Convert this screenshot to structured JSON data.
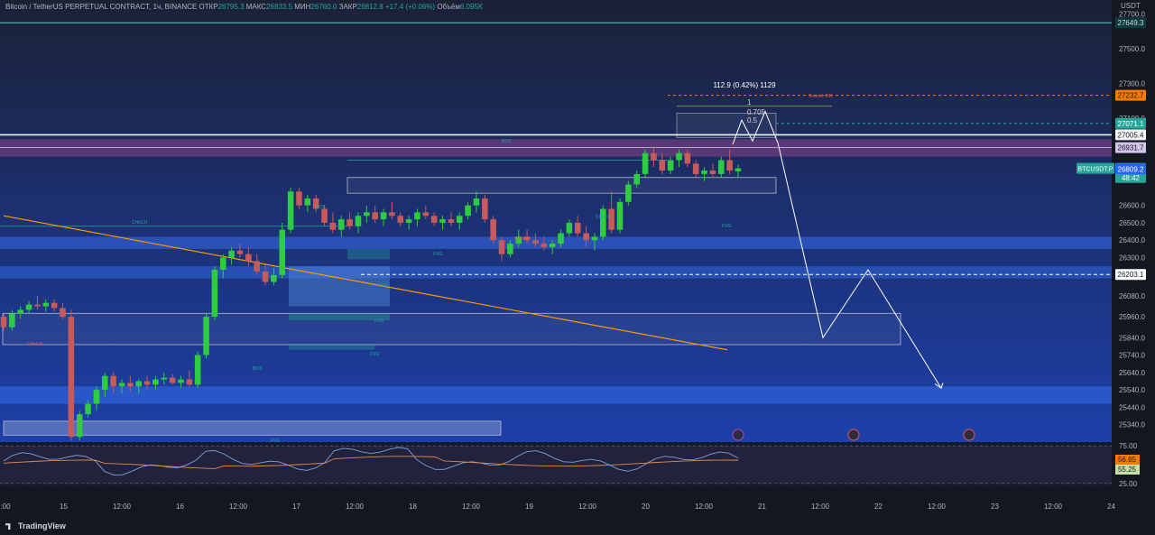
{
  "header": {
    "symbol": "Bitcoin / TetherUS PERPETUAL CONTRACT, 1ч, BINANCE",
    "open_label": "ОТКР",
    "open": "26795.3",
    "high_label": "МАКС",
    "high": "26833.5",
    "low_label": "МИН",
    "low": "26760.0",
    "close_label": "ЗАКР",
    "close": "26812.8",
    "change": "+17.4 (+0.06%)",
    "volume_label": "Объём",
    "volume": "6.095K"
  },
  "branding": "TradingView",
  "axis": {
    "currency": "USDT",
    "price_ticks": [
      "27700.0",
      "27500.0",
      "27300.0",
      "27100.0",
      "26600.0",
      "26500.0",
      "26400.0",
      "26300.0",
      "26080.0",
      "25960.0",
      "25840.0",
      "25740.0",
      "25640.0",
      "25540.0",
      "25440.0",
      "25340.0"
    ],
    "time_ticks": [
      ":00",
      "15",
      "12:00",
      "16",
      "12:00",
      "17",
      "12:00",
      "18",
      "12:00",
      "19",
      "12:00",
      "20",
      "12:00",
      "21",
      "12:00",
      "22",
      "12:00",
      "23",
      "12:00",
      "24"
    ],
    "rsi_ticks": [
      "75.00",
      "25.00"
    ]
  },
  "price_labels": [
    {
      "text": "27649.3",
      "price": 27649.3,
      "color": "#0c3c3c",
      "fg": "#d1d4dc"
    },
    {
      "text": "27232.7",
      "price": 27232.7,
      "color": "#f57c00",
      "fg": "#131722"
    },
    {
      "text": "27071.1",
      "price": 27071.1,
      "color": "#26a69a",
      "fg": "#ffffff"
    },
    {
      "text": "27005.4",
      "price": 27005.4,
      "color": "#f5f5f5",
      "fg": "#131722"
    },
    {
      "text": "26931.7",
      "price": 26931.7,
      "color": "#d1c4e9",
      "fg": "#131722"
    },
    {
      "text": "26812.8",
      "price": 26812.8,
      "color": "#26a69a",
      "fg": "#ffffff"
    },
    {
      "text": "48:42",
      "price": 26760,
      "color": "#26a69a",
      "fg": "#ffffff"
    },
    {
      "text": "26809.2",
      "price": 26809.2,
      "color": "#2962ff",
      "fg": "#ffffff"
    },
    {
      "text": "26203.1",
      "price": 26203.1,
      "color": "#ffffff",
      "fg": "#131722"
    }
  ],
  "ticker_tag": "BTCUSDT.P",
  "measure_label": "112.9 (0.42%) 1129",
  "fib_labels": [
    "1",
    "0.705",
    "0.5"
  ],
  "smc_labels": {
    "fvg": "FVG",
    "choch": "CHoCH",
    "bos": "BOS",
    "ob": "Bearish OB"
  },
  "rsi_values": [
    "56.85",
    "55.25"
  ],
  "colors": {
    "up": "#26a69a",
    "down": "#ef5350",
    "bg": "#131722",
    "bull_candle": "#2ecc40",
    "bear_candle": "#c75a5a",
    "trend": "#ff9800"
  },
  "chart_data": {
    "type": "candlestick",
    "title": "Bitcoin / TetherUS PERPETUAL CONTRACT, 1ч, BINANCE",
    "ylim": [
      25240,
      27780
    ],
    "rsi_ylim": [
      20,
      80
    ],
    "candles_approx": [
      [
        25960,
        25980,
        25880,
        25900
      ],
      [
        25900,
        26000,
        25880,
        25980
      ],
      [
        25980,
        26020,
        25950,
        26000
      ],
      [
        26000,
        26050,
        25980,
        26030
      ],
      [
        26030,
        26080,
        26000,
        26020
      ],
      [
        26020,
        26060,
        25990,
        26040
      ],
      [
        26040,
        26060,
        25990,
        26010
      ],
      [
        26010,
        26040,
        25950,
        25960
      ],
      [
        25960,
        26000,
        25250,
        25270
      ],
      [
        25270,
        25420,
        25250,
        25400
      ],
      [
        25400,
        25480,
        25380,
        25460
      ],
      [
        25460,
        25560,
        25420,
        25540
      ],
      [
        25540,
        25640,
        25500,
        25620
      ],
      [
        25620,
        25640,
        25520,
        25560
      ],
      [
        25560,
        25600,
        25520,
        25580
      ],
      [
        25580,
        25620,
        25530,
        25560
      ],
      [
        25560,
        25600,
        25520,
        25590
      ],
      [
        25590,
        25620,
        25540,
        25570
      ],
      [
        25570,
        25620,
        25540,
        25600
      ],
      [
        25600,
        25640,
        25570,
        25610
      ],
      [
        25610,
        25630,
        25570,
        25580
      ],
      [
        25580,
        25620,
        25550,
        25600
      ],
      [
        25600,
        25650,
        25560,
        25570
      ],
      [
        25570,
        25760,
        25550,
        25740
      ],
      [
        25740,
        25980,
        25720,
        25960
      ],
      [
        25960,
        26250,
        25940,
        26230
      ],
      [
        26230,
        26320,
        26180,
        26300
      ],
      [
        26300,
        26360,
        26260,
        26340
      ],
      [
        26340,
        26380,
        26300,
        26320
      ],
      [
        26320,
        26360,
        26250,
        26280
      ],
      [
        26280,
        26320,
        26200,
        26220
      ],
      [
        26220,
        26260,
        26140,
        26160
      ],
      [
        26160,
        26240,
        26140,
        26200
      ],
      [
        26200,
        26500,
        26180,
        26460
      ],
      [
        26460,
        26700,
        26440,
        26680
      ],
      [
        26680,
        26700,
        26580,
        26600
      ],
      [
        26600,
        26660,
        26560,
        26640
      ],
      [
        26640,
        26660,
        26560,
        26580
      ],
      [
        26580,
        26600,
        26480,
        26500
      ],
      [
        26500,
        26560,
        26440,
        26460
      ],
      [
        26460,
        26540,
        26420,
        26520
      ],
      [
        26520,
        26560,
        26460,
        26480
      ],
      [
        26480,
        26560,
        26440,
        26540
      ],
      [
        26540,
        26600,
        26500,
        26560
      ],
      [
        26560,
        26600,
        26500,
        26520
      ],
      [
        26520,
        26580,
        26480,
        26560
      ],
      [
        26560,
        26620,
        26520,
        26540
      ],
      [
        26540,
        26560,
        26480,
        26500
      ],
      [
        26500,
        26540,
        26460,
        26520
      ],
      [
        26520,
        26580,
        26480,
        26560
      ],
      [
        26560,
        26600,
        26520,
        26540
      ],
      [
        26540,
        26560,
        26480,
        26500
      ],
      [
        26500,
        26540,
        26460,
        26520
      ],
      [
        26520,
        26560,
        26480,
        26500
      ],
      [
        26500,
        26560,
        26460,
        26540
      ],
      [
        26540,
        26620,
        26520,
        26600
      ],
      [
        26600,
        26680,
        26560,
        26640
      ],
      [
        26640,
        26660,
        26500,
        26520
      ],
      [
        26520,
        26540,
        26380,
        26400
      ],
      [
        26400,
        26420,
        26280,
        26320
      ],
      [
        26320,
        26400,
        26300,
        26380
      ],
      [
        26380,
        26460,
        26360,
        26420
      ],
      [
        26420,
        26460,
        26380,
        26400
      ],
      [
        26400,
        26440,
        26360,
        26380
      ],
      [
        26380,
        26420,
        26340,
        26360
      ],
      [
        26360,
        26400,
        26320,
        26380
      ],
      [
        26380,
        26460,
        26360,
        26440
      ],
      [
        26440,
        26520,
        26420,
        26500
      ],
      [
        26500,
        26540,
        26420,
        26440
      ],
      [
        26440,
        26480,
        26360,
        26400
      ],
      [
        26400,
        26440,
        26340,
        26420
      ],
      [
        26420,
        26600,
        26400,
        26580
      ],
      [
        26580,
        26680,
        26440,
        26460
      ],
      [
        26460,
        26640,
        26440,
        26620
      ],
      [
        26620,
        26740,
        26600,
        26720
      ],
      [
        26720,
        26800,
        26700,
        26780
      ],
      [
        26780,
        26920,
        26760,
        26900
      ],
      [
        26900,
        26940,
        26820,
        26860
      ],
      [
        26860,
        26900,
        26780,
        26800
      ],
      [
        26800,
        26880,
        26780,
        26860
      ],
      [
        26860,
        26920,
        26820,
        26900
      ],
      [
        26900,
        26920,
        26820,
        26840
      ],
      [
        26840,
        26860,
        26760,
        26780
      ],
      [
        26780,
        26820,
        26740,
        26800
      ],
      [
        26800,
        26840,
        26760,
        26780
      ],
      [
        26780,
        26880,
        26760,
        26860
      ],
      [
        26860,
        26920,
        26780,
        26800
      ],
      [
        26795.3,
        26833.5,
        26760.0,
        26812.8
      ]
    ]
  }
}
